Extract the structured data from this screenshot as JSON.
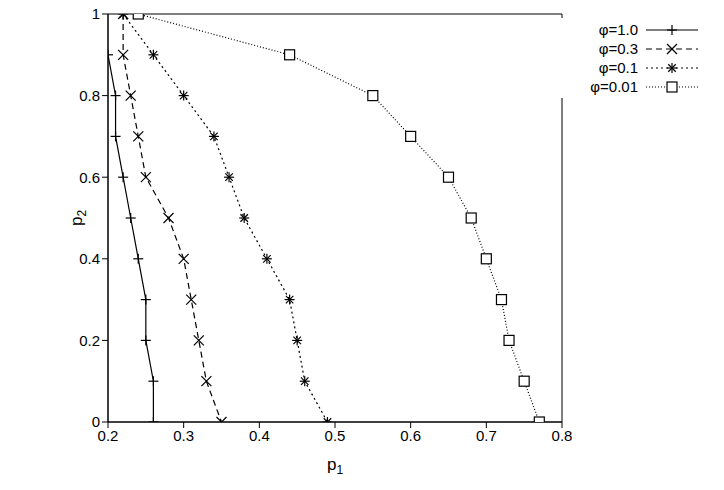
{
  "chart_data": {
    "type": "line",
    "x_label": "p1",
    "y_label": "p2",
    "xlim": [
      0.2,
      0.8
    ],
    "xticks": [
      0.2,
      0.3,
      0.4,
      0.5,
      0.6,
      0.7,
      0.8
    ],
    "ylim": [
      0,
      1
    ],
    "yticks": [
      0,
      0.2,
      0.4,
      0.6,
      0.8,
      1
    ],
    "legend": "top-right",
    "series": [
      {
        "name": "φ=1.0",
        "color": "#000000",
        "marker": "plus",
        "line_style": "solid",
        "x": [
          0.2,
          0.21,
          0.21,
          0.22,
          0.23,
          0.24,
          0.25,
          0.25,
          0.26,
          0.26
        ],
        "values": [
          0.9,
          0.8,
          0.7,
          0.6,
          0.5,
          0.4,
          0.3,
          0.2,
          0.1,
          0.0
        ]
      },
      {
        "name": "φ=0.3",
        "color": "#000000",
        "marker": "cross",
        "line_style": "dashed",
        "x": [
          0.22,
          0.22,
          0.23,
          0.24,
          0.25,
          0.28,
          0.3,
          0.31,
          0.32,
          0.33,
          0.35
        ],
        "values": [
          1.0,
          0.9,
          0.8,
          0.7,
          0.6,
          0.5,
          0.4,
          0.3,
          0.2,
          0.1,
          0.0
        ]
      },
      {
        "name": "φ=0.1",
        "color": "#000000",
        "marker": "star",
        "line_style": "dotted",
        "x": [
          0.22,
          0.26,
          0.3,
          0.34,
          0.36,
          0.38,
          0.41,
          0.44,
          0.45,
          0.46,
          0.49
        ],
        "values": [
          1.0,
          0.9,
          0.8,
          0.7,
          0.6,
          0.5,
          0.4,
          0.3,
          0.2,
          0.1,
          0.0
        ]
      },
      {
        "name": "φ=0.01",
        "color": "#000000",
        "marker": "square",
        "line_style": "dotted",
        "x": [
          0.24,
          0.44,
          0.55,
          0.6,
          0.65,
          0.68,
          0.7,
          0.72,
          0.73,
          0.75,
          0.77
        ],
        "values": [
          1.0,
          0.9,
          0.8,
          0.7,
          0.6,
          0.5,
          0.4,
          0.3,
          0.2,
          0.1,
          0.0
        ]
      }
    ]
  }
}
